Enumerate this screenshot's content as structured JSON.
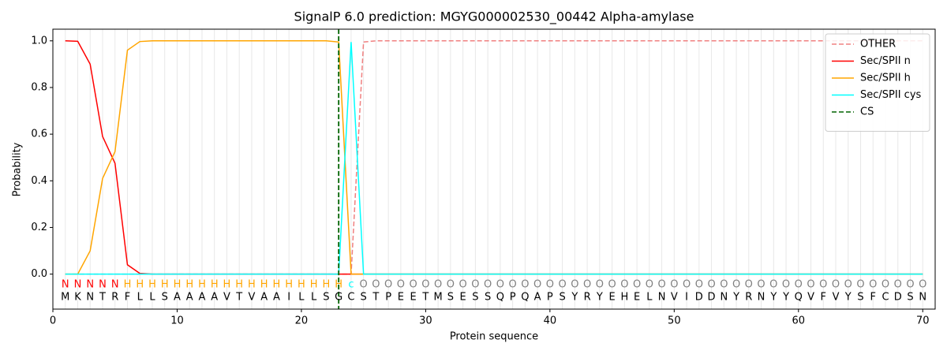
{
  "chart_data": {
    "type": "line",
    "title": "SignalP 6.0 prediction: MGYG000002530_00442 Alpha-amylase",
    "x_label": "Protein sequence",
    "y_label": "Probability",
    "xlim": [
      0,
      71
    ],
    "ylim": [
      -0.15,
      1.05
    ],
    "xticks": [
      0,
      10,
      20,
      30,
      40,
      50,
      60,
      70
    ],
    "yticks": [
      {
        "value": 0,
        "label": "0.0"
      },
      0.2,
      0.4,
      0.6,
      0.8,
      {
        "value": 1,
        "label": "1.0"
      }
    ],
    "legend": "upper right",
    "x": [
      1,
      2,
      3,
      4,
      5,
      6,
      7,
      8,
      9,
      10,
      11,
      12,
      13,
      14,
      15,
      16,
      17,
      18,
      19,
      20,
      21,
      22,
      23,
      24,
      25,
      26,
      27,
      28,
      29,
      30,
      31,
      32,
      33,
      34,
      35,
      36,
      37,
      38,
      39,
      40,
      41,
      42,
      43,
      44,
      45,
      46,
      47,
      48,
      49,
      50,
      51,
      52,
      53,
      54,
      55,
      56,
      57,
      58,
      59,
      60,
      61,
      62,
      63,
      64,
      65,
      66,
      67,
      68,
      69,
      70
    ],
    "residues": [
      "M",
      "K",
      "N",
      "T",
      "R",
      "F",
      "L",
      "L",
      "S",
      "A",
      "A",
      "A",
      "A",
      "V",
      "T",
      "V",
      "A",
      "A",
      "I",
      "L",
      "L",
      "S",
      "G",
      "C",
      "S",
      "T",
      "P",
      "E",
      "E",
      "T",
      "M",
      "S",
      "E",
      "S",
      "S",
      "Q",
      "P",
      "Q",
      "A",
      "P",
      "S",
      "Y",
      "R",
      "Y",
      "E",
      "H",
      "E",
      "L",
      "N",
      "V",
      "I",
      "D",
      "D",
      "N",
      "Y",
      "R",
      "N",
      "Y",
      "Y",
      "Q",
      "V",
      "F",
      "V",
      "Y",
      "S",
      "F",
      "C",
      "D",
      "S",
      "N"
    ],
    "region_labels": [
      "N",
      "N",
      "N",
      "N",
      "N",
      "H",
      "H",
      "H",
      "H",
      "H",
      "H",
      "H",
      "H",
      "H",
      "H",
      "H",
      "H",
      "H",
      "H",
      "H",
      "H",
      "H",
      "H",
      "c",
      "O",
      "O",
      "O",
      "O",
      "O",
      "O",
      "O",
      "O",
      "O",
      "O",
      "O",
      "O",
      "O",
      "O",
      "O",
      "O",
      "O",
      "O",
      "O",
      "O",
      "O",
      "O",
      "O",
      "O",
      "O",
      "O",
      "O",
      "O",
      "O",
      "O",
      "O",
      "O",
      "O",
      "O",
      "O",
      "O",
      "O",
      "O",
      "O",
      "O",
      "O",
      "O",
      "O",
      "O",
      "O",
      "O"
    ],
    "region_colors": {
      "N": "#ff0000",
      "H": "#ffa500",
      "c": "#00ffff",
      "O": "#808080"
    },
    "series": [
      {
        "name": "OTHER",
        "color": "#f08080",
        "dash": true,
        "values": [
          0,
          0,
          0,
          0,
          0,
          0,
          0,
          0,
          0,
          0,
          0,
          0,
          0,
          0,
          0,
          0,
          0,
          0,
          0,
          0,
          0,
          0,
          0,
          0,
          0.995,
          1,
          1,
          1,
          1,
          1,
          1,
          1,
          1,
          1,
          1,
          1,
          1,
          1,
          1,
          1,
          1,
          1,
          1,
          1,
          1,
          1,
          1,
          1,
          1,
          1,
          1,
          1,
          1,
          1,
          1,
          1,
          1,
          1,
          1,
          1,
          1,
          1,
          1,
          1,
          1,
          1,
          1,
          1,
          1,
          1
        ]
      },
      {
        "name": "Sec/SPII n",
        "color": "#ff0000",
        "values": [
          1,
          0.998,
          0.9,
          0.59,
          0.475,
          0.04,
          0.003,
          0,
          0,
          0,
          0,
          0,
          0,
          0,
          0,
          0,
          0,
          0,
          0,
          0,
          0,
          0,
          0,
          0,
          0,
          0,
          0,
          0,
          0,
          0,
          0,
          0,
          0,
          0,
          0,
          0,
          0,
          0,
          0,
          0,
          0,
          0,
          0,
          0,
          0,
          0,
          0,
          0,
          0,
          0,
          0,
          0,
          0,
          0,
          0,
          0,
          0,
          0,
          0,
          0,
          0,
          0,
          0,
          0,
          0,
          0,
          0,
          0,
          0,
          0
        ]
      },
      {
        "name": "Sec/SPII h",
        "color": "#ffa500",
        "values": [
          0,
          0,
          0.1,
          0.41,
          0.525,
          0.96,
          0.997,
          1,
          1,
          1,
          1,
          1,
          1,
          1,
          1,
          1,
          1,
          1,
          1,
          1,
          1,
          1,
          0.995,
          0,
          0,
          0,
          0,
          0,
          0,
          0,
          0,
          0,
          0,
          0,
          0,
          0,
          0,
          0,
          0,
          0,
          0,
          0,
          0,
          0,
          0,
          0,
          0,
          0,
          0,
          0,
          0,
          0,
          0,
          0,
          0,
          0,
          0,
          0,
          0,
          0,
          0,
          0,
          0,
          0,
          0,
          0,
          0,
          0,
          0,
          0
        ]
      },
      {
        "name": "Sec/SPII cys",
        "color": "#00ffff",
        "values": [
          0,
          0,
          0,
          0,
          0,
          0,
          0,
          0,
          0,
          0,
          0,
          0,
          0,
          0,
          0,
          0,
          0,
          0,
          0,
          0,
          0,
          0,
          0,
          0.995,
          0,
          0,
          0,
          0,
          0,
          0,
          0,
          0,
          0,
          0,
          0,
          0,
          0,
          0,
          0,
          0,
          0,
          0,
          0,
          0,
          0,
          0,
          0,
          0,
          0,
          0,
          0,
          0,
          0,
          0,
          0,
          0,
          0,
          0,
          0,
          0,
          0,
          0,
          0,
          0,
          0,
          0,
          0,
          0,
          0,
          0
        ]
      }
    ],
    "cs": {
      "name": "CS",
      "color": "#006400",
      "x": 23
    }
  }
}
